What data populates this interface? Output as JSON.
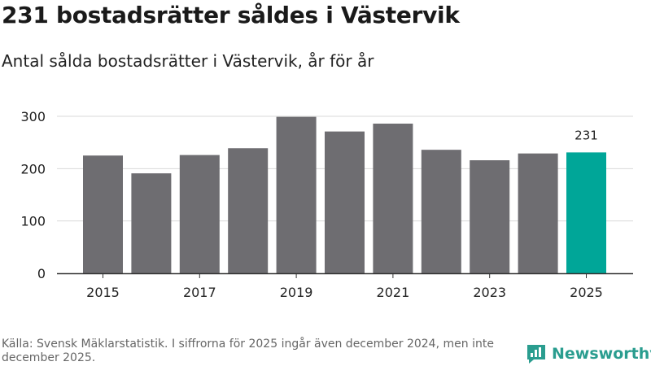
{
  "title": "231 bostadsrätter såldes i Västervik",
  "subtitle": "Antal sålda bostadsrätter i Västervik, år för år",
  "footer": "Källa: Svensk Mäklarstatistik. I siffrorna för 2025 ingår även december 2024, men inte december 2025.",
  "brand": {
    "name": "Newsworthy",
    "icon": "newsworthy-logo-icon"
  },
  "colors": {
    "bar": "#6e6d71",
    "highlight": "#00a698",
    "grid": "#d9d9d9",
    "axis": "#333333",
    "brand": "#2a9d8f"
  },
  "chart_data": {
    "type": "bar",
    "categories": [
      "2015",
      "2016",
      "2017",
      "2018",
      "2019",
      "2020",
      "2021",
      "2022",
      "2023",
      "2024",
      "2025"
    ],
    "values": [
      225,
      191,
      226,
      239,
      299,
      271,
      286,
      236,
      216,
      229,
      231
    ],
    "x_tick_labels": [
      "2015",
      "2017",
      "2019",
      "2021",
      "2023",
      "2025"
    ],
    "y_ticks": [
      0,
      100,
      200,
      300
    ],
    "ylim": [
      0,
      300
    ],
    "highlight_index": 10,
    "data_labels": [
      {
        "index": 10,
        "text": "231"
      }
    ],
    "grid": true,
    "legend": "none"
  }
}
